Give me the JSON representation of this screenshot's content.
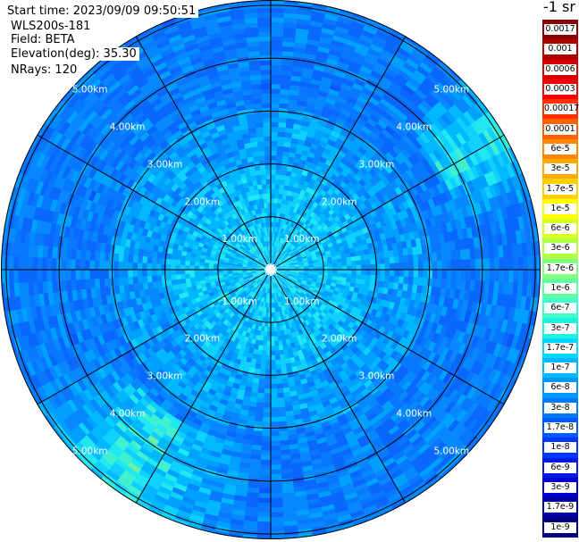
{
  "header": {
    "start_time": "Start time: 2023/09/09 09:50:51",
    "instrument": "WLS200s-181",
    "field": "Field: BETA",
    "elevation": "Elevation(deg): 35.30",
    "nrays": "NRays: 120"
  },
  "chart_data": {
    "type": "heatmap",
    "projection": "polar-ppi",
    "n_rays": 120,
    "grid": true,
    "range_rings_km": [
      1,
      2,
      3,
      4,
      5
    ],
    "range_ring_labels": [
      "1.00km",
      "2.00km",
      "3.00km",
      "4.00km",
      "5.00km"
    ],
    "radial_spokes_deg": [
      0,
      30,
      60,
      90,
      120,
      150,
      180,
      210,
      240,
      270,
      300,
      330
    ],
    "colorbar": {
      "unit": "-1 sr",
      "placement": "right",
      "ticks": [
        "0.0017",
        "0.001",
        "0.0006",
        "0.0003",
        "0.00017",
        "0.0001",
        "6e-5",
        "3e-5",
        "1.7e-5",
        "1e-5",
        "6e-6",
        "3e-6",
        "1.7e-6",
        "1e-6",
        "6e-7",
        "3e-7",
        "1.7e-7",
        "1e-7",
        "6e-8",
        "3e-8",
        "1.7e-8",
        "1e-8",
        "6e-9",
        "3e-9",
        "1.7e-9",
        "1e-9"
      ],
      "colors": [
        "#8b0000",
        "#b00000",
        "#d40000",
        "#f40000",
        "#ff3000",
        "#ff6000",
        "#ff8800",
        "#ffaa00",
        "#ffd000",
        "#ffff00",
        "#d8ff20",
        "#b0ff40",
        "#80ff80",
        "#60ffa0",
        "#40ffc8",
        "#20f0e0",
        "#00d8ff",
        "#00b8ff",
        "#0098ff",
        "#0078ff",
        "#0058ff",
        "#0038ff",
        "#0018e8",
        "#0000cc",
        "#0000a0",
        "#000080"
      ]
    }
  }
}
